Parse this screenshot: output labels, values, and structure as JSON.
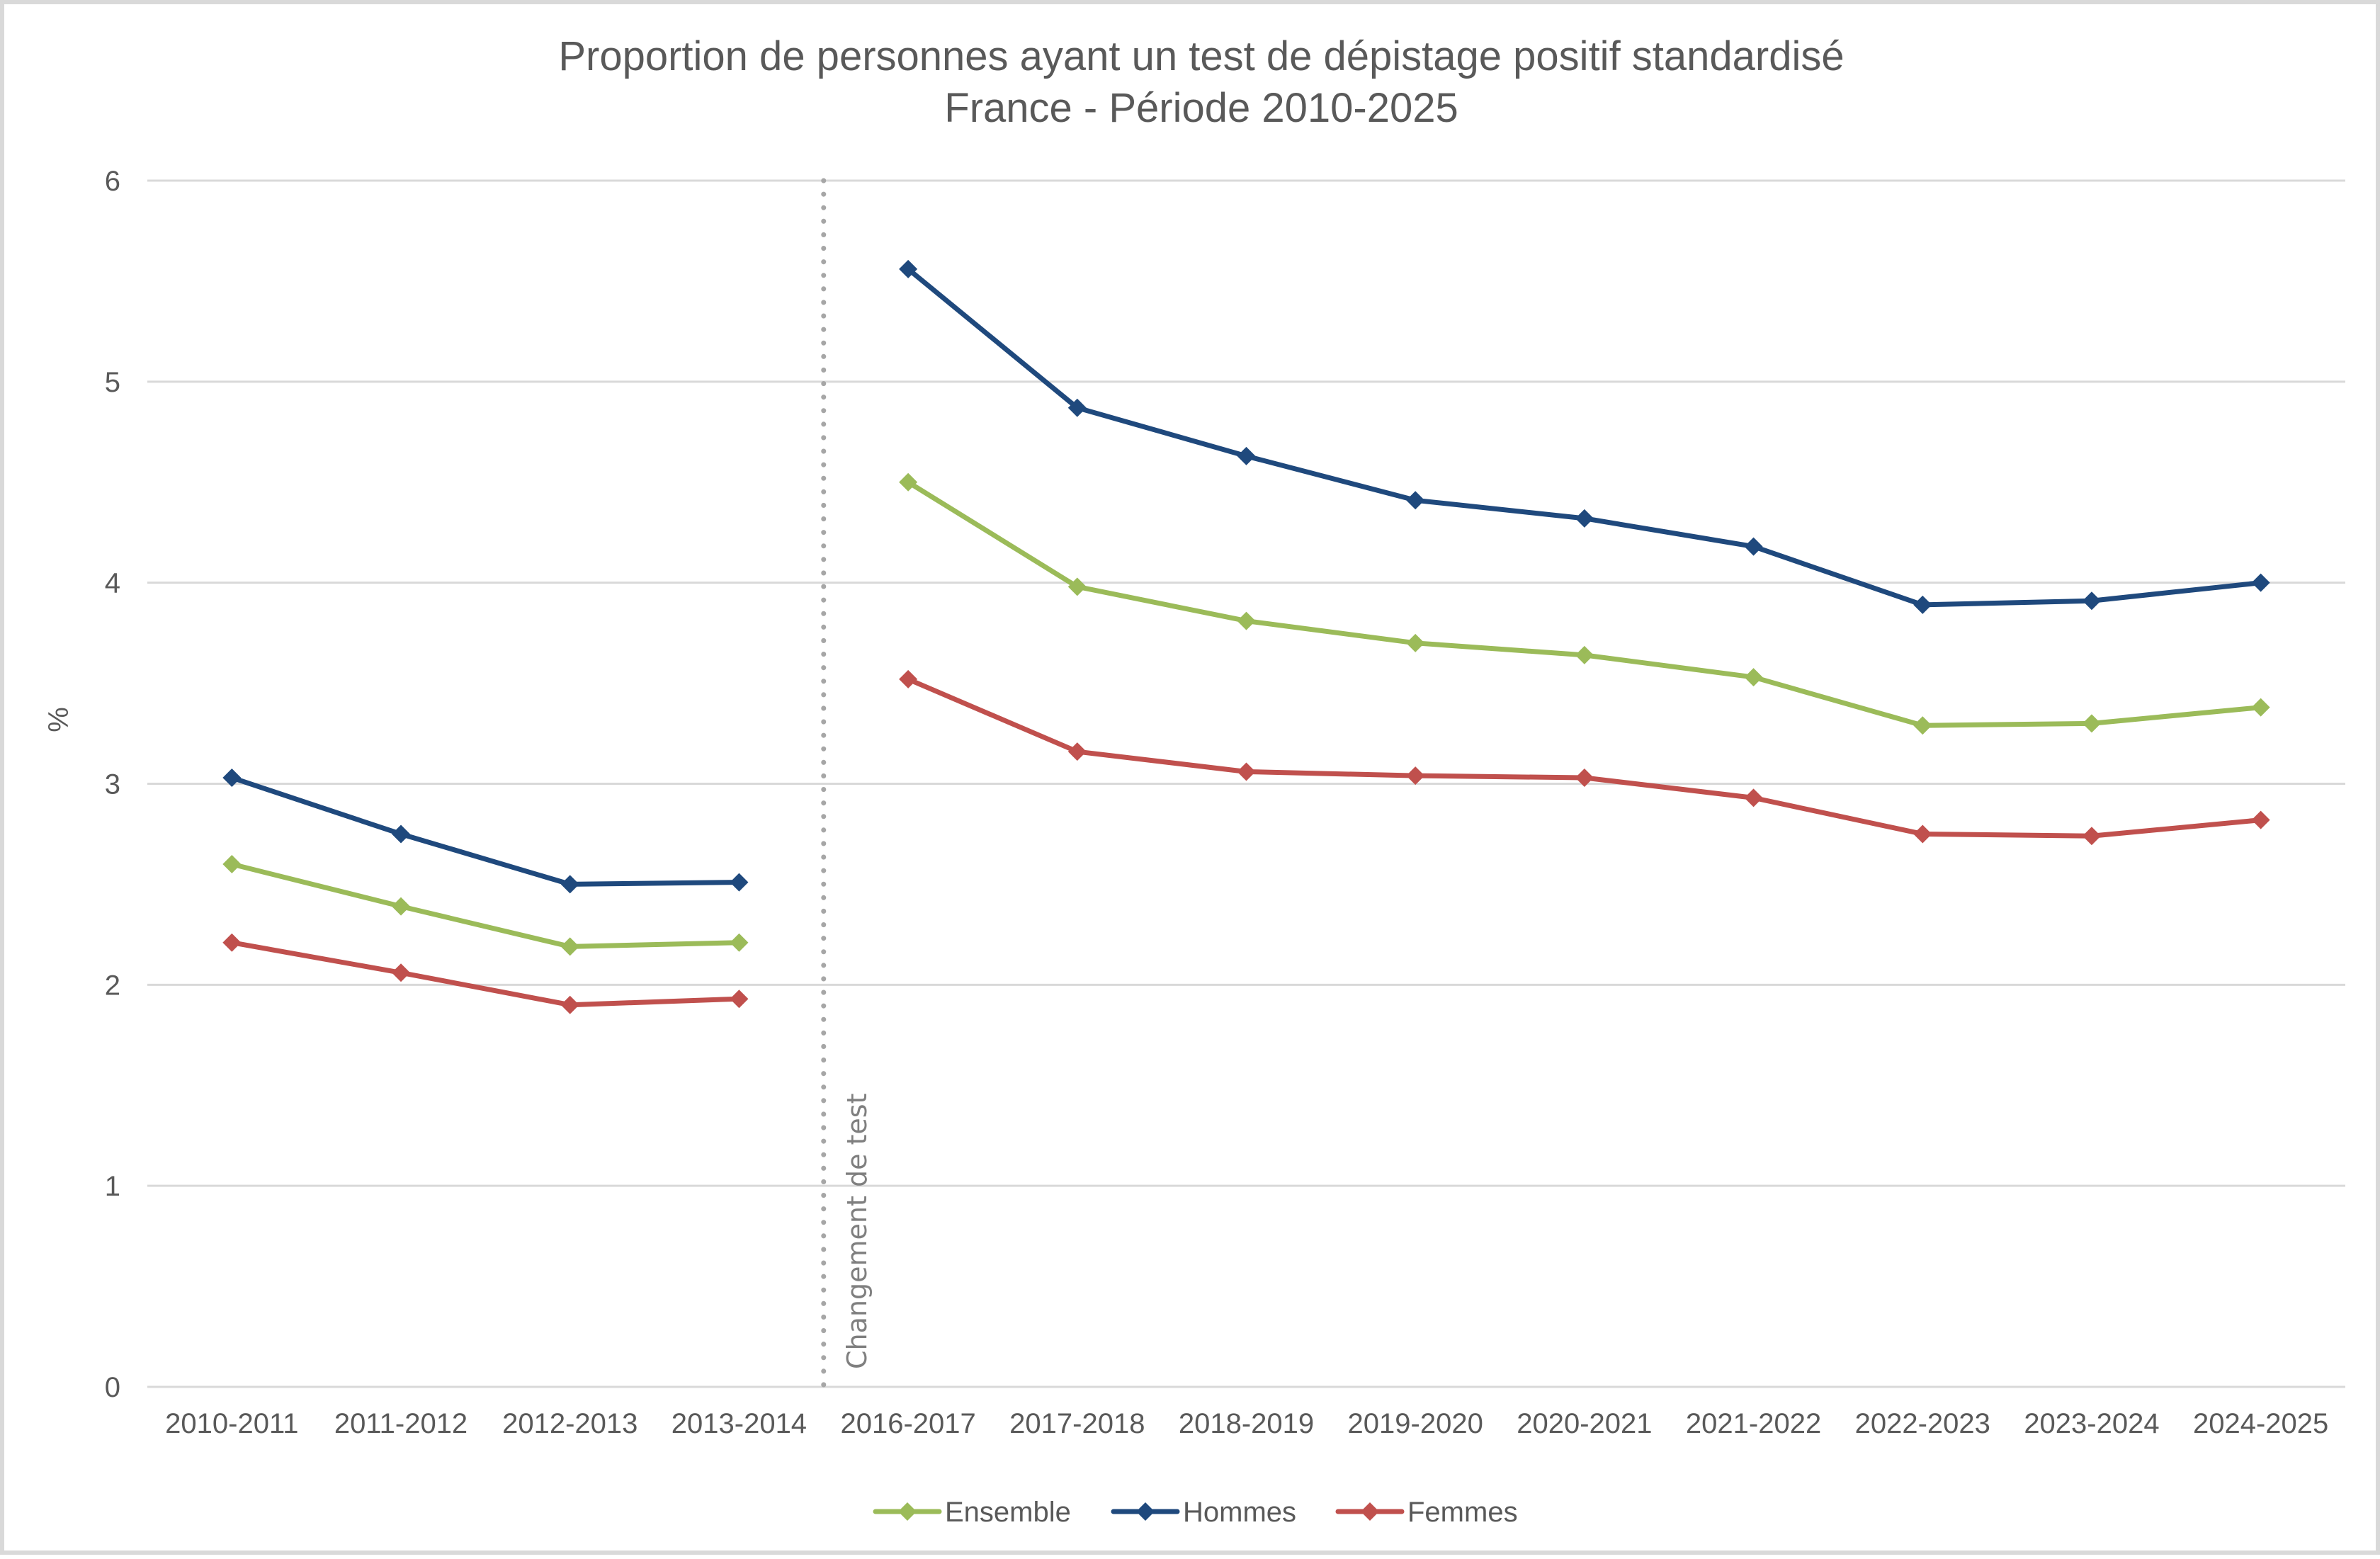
{
  "chart_data": {
    "type": "line",
    "title": "Proportion de personnes ayant un test de dépistage positif standardisé",
    "subtitle": "France - Période 2010-2025",
    "xlabel": "",
    "ylabel": "%",
    "ylim": [
      0,
      6
    ],
    "yticks": [
      0,
      1,
      2,
      3,
      4,
      5,
      6
    ],
    "grid": true,
    "legend_position": "bottom",
    "categories": [
      "2010-2011",
      "2011-2012",
      "2012-2013",
      "2013-2014",
      "2016-2017",
      "2017-2018",
      "2018-2019",
      "2019-2020",
      "2020-2021",
      "2021-2022",
      "2022-2023",
      "2023-2024",
      "2024-2025"
    ],
    "segments": [
      [
        0,
        3
      ],
      [
        4,
        12
      ]
    ],
    "annotation": {
      "text": "Changement de test",
      "between_categories": [
        "2013-2014",
        "2016-2017"
      ],
      "style": "dotted-vertical-line"
    },
    "series": [
      {
        "name": "Ensemble",
        "color": "#9bbb59",
        "marker": "diamond",
        "values": [
          2.6,
          2.39,
          2.19,
          2.21,
          4.5,
          3.98,
          3.81,
          3.7,
          3.64,
          3.53,
          3.29,
          3.3,
          3.38
        ]
      },
      {
        "name": "Hommes",
        "color": "#1f497d",
        "marker": "diamond",
        "values": [
          3.03,
          2.75,
          2.5,
          2.51,
          5.56,
          4.87,
          4.63,
          4.41,
          4.32,
          4.18,
          3.89,
          3.91,
          4.0
        ]
      },
      {
        "name": "Femmes",
        "color": "#c0504d",
        "marker": "diamond",
        "values": [
          2.21,
          2.06,
          1.9,
          1.93,
          3.52,
          3.16,
          3.06,
          3.04,
          3.03,
          2.93,
          2.75,
          2.74,
          2.82
        ]
      }
    ]
  }
}
